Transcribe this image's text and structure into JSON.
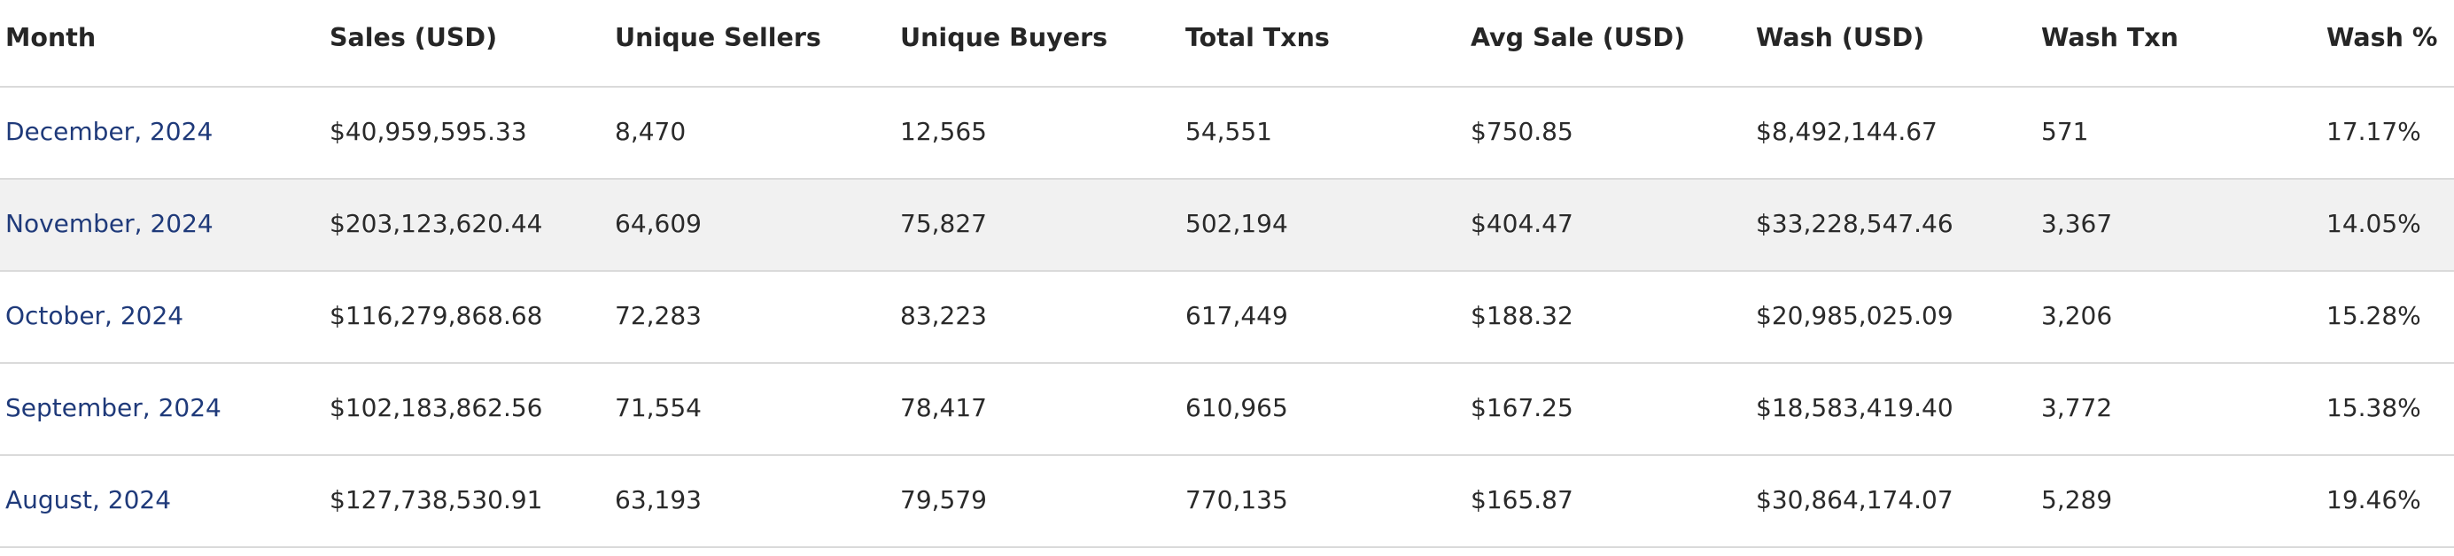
{
  "table": {
    "columns": [
      "Month",
      "Sales (USD)",
      "Unique Sellers",
      "Unique Buyers",
      "Total Txns",
      "Avg Sale (USD)",
      "Wash (USD)",
      "Wash Txn",
      "Wash %"
    ],
    "rows": [
      {
        "month": "December, 2024",
        "sales": "$40,959,595.33",
        "unique_sellers": "8,470",
        "unique_buyers": "12,565",
        "total_txns": "54,551",
        "avg_sale": "$750.85",
        "wash_usd": "$8,492,144.67",
        "wash_txn": "571",
        "wash_pct": "17.17%"
      },
      {
        "month": "November, 2024",
        "sales": "$203,123,620.44",
        "unique_sellers": "64,609",
        "unique_buyers": "75,827",
        "total_txns": "502,194",
        "avg_sale": "$404.47",
        "wash_usd": "$33,228,547.46",
        "wash_txn": "3,367",
        "wash_pct": "14.05%"
      },
      {
        "month": "October, 2024",
        "sales": "$116,279,868.68",
        "unique_sellers": "72,283",
        "unique_buyers": "83,223",
        "total_txns": "617,449",
        "avg_sale": "$188.32",
        "wash_usd": "$20,985,025.09",
        "wash_txn": "3,206",
        "wash_pct": "15.28%"
      },
      {
        "month": "September, 2024",
        "sales": "$102,183,862.56",
        "unique_sellers": "71,554",
        "unique_buyers": "78,417",
        "total_txns": "610,965",
        "avg_sale": "$167.25",
        "wash_usd": "$18,583,419.40",
        "wash_txn": "3,772",
        "wash_pct": "15.38%"
      },
      {
        "month": "August, 2024",
        "sales": "$127,738,530.91",
        "unique_sellers": "63,193",
        "unique_buyers": "79,579",
        "total_txns": "770,135",
        "avg_sale": "$165.87",
        "wash_usd": "$30,864,174.07",
        "wash_txn": "5,289",
        "wash_pct": "19.46%"
      }
    ]
  }
}
